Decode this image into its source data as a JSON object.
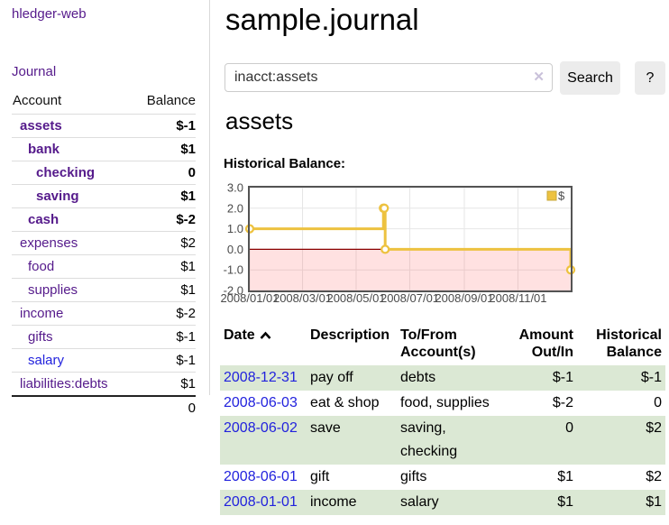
{
  "app": {
    "brand": "hledger-web"
  },
  "sidebar": {
    "nav_journal": "Journal",
    "accounts": {
      "col_account": "Account",
      "col_balance": "Balance",
      "rows": [
        {
          "name": "assets",
          "balance": "$-1"
        },
        {
          "name": "bank",
          "balance": "$1"
        },
        {
          "name": "checking",
          "balance": "0"
        },
        {
          "name": "saving",
          "balance": "$1"
        },
        {
          "name": "cash",
          "balance": "$-2"
        },
        {
          "name": "expenses",
          "balance": "$2"
        },
        {
          "name": "food",
          "balance": "$1"
        },
        {
          "name": "supplies",
          "balance": "$1"
        },
        {
          "name": "income",
          "balance": "$-2"
        },
        {
          "name": "gifts",
          "balance": "$-1"
        },
        {
          "name": "salary",
          "balance": "$-1"
        },
        {
          "name": "liabilities:debts",
          "balance": "$1"
        }
      ],
      "total": "0"
    }
  },
  "main": {
    "title": "sample.journal",
    "search": {
      "value": "inacct:assets",
      "clear_icon": "✕",
      "search_button": "Search",
      "help_button": "?"
    },
    "account_heading": "assets",
    "chart_label": "Historical Balance:",
    "register": {
      "sort_column": "Date",
      "sort_direction": "ascending",
      "headers": [
        "Date",
        "Description",
        "To/From Account(s)",
        "Amount Out/In",
        "Historical Balance"
      ],
      "rows": [
        {
          "date": "2008-12-31",
          "description": "pay off",
          "tofrom": "debts",
          "amount": "$-1",
          "balance": "$-1"
        },
        {
          "date": "2008-06-03",
          "description": "eat & shop",
          "tofrom": "food, supplies",
          "amount": "$-2",
          "balance": "0"
        },
        {
          "date": "2008-06-02",
          "description": "save",
          "tofrom": "saving, checking",
          "amount": "0",
          "balance": "$2"
        },
        {
          "date": "2008-06-01",
          "description": "gift",
          "tofrom": "gifts",
          "amount": "$1",
          "balance": "$2"
        },
        {
          "date": "2008-01-01",
          "description": "income",
          "tofrom": "salary",
          "amount": "$1",
          "balance": "$1"
        }
      ]
    }
  },
  "chart_data": {
    "type": "line",
    "step": true,
    "title": "Historical Balance:",
    "x_range": [
      "2008-01-01",
      "2008-12-31"
    ],
    "ylim": [
      -2,
      3
    ],
    "y_tick_labels": [
      "3.0",
      "2.0",
      "1.0",
      "0.0",
      "-1.0",
      "-2.0"
    ],
    "x_tick_labels": [
      "2008/01/01",
      "2008/03/01",
      "2008/05/01",
      "2008/07/01",
      "2008/09/01",
      "2008/11/01"
    ],
    "series": [
      {
        "name": "$",
        "color": "#edc240",
        "points": [
          {
            "x": "2008-01-01",
            "y": 1
          },
          {
            "x": "2008-06-01",
            "y": 2
          },
          {
            "x": "2008-06-02",
            "y": 2
          },
          {
            "x": "2008-06-03",
            "y": 0
          },
          {
            "x": "2008-12-31",
            "y": -1
          }
        ]
      }
    ],
    "legend": {
      "label": "$",
      "position": "top-right"
    },
    "grid": true
  },
  "colors": {
    "link_purple": "#551a8b",
    "link_blue": "#2222dd",
    "negative_strong": "#880000",
    "negative_muted": "#bb6b6b",
    "row_stripe_green": "#dbe8d4",
    "button_bg": "#ececec",
    "chart_line": "#edc240",
    "chart_negative_overlay": "rgba(255,70,70,0.16)",
    "chart_zero_line": "#8b0000",
    "chart_border": "#545454"
  }
}
